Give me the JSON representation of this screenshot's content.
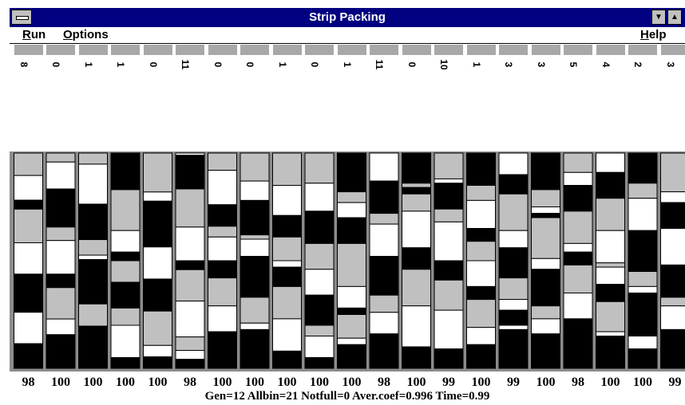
{
  "window": {
    "title": "Strip Packing",
    "system_menu_icon": "system-menu-icon",
    "minimize_icon": "minimize-arrow-icon",
    "maximize_icon": "maximize-arrow-icon"
  },
  "menu": {
    "run": "Run",
    "options": "Options",
    "help": "Help"
  },
  "bins": [
    {
      "count": "8",
      "coef": "98",
      "segments": [
        "L",
        10,
        "W",
        11,
        "B",
        4,
        "L",
        15,
        "W",
        14,
        "B",
        17,
        "W",
        14,
        "B",
        11
      ]
    },
    {
      "count": "0",
      "coef": "100",
      "segments": [
        "L",
        4,
        "W",
        12,
        "B",
        17,
        "L",
        6,
        "W",
        15,
        "B",
        6,
        "L",
        14,
        "W",
        7,
        "B",
        15
      ]
    },
    {
      "count": "1",
      "coef": "100",
      "segments": [
        "L",
        5,
        "W",
        18,
        "B",
        16,
        "L",
        7,
        "W",
        2,
        "B",
        20,
        "L",
        10,
        "B",
        19
      ]
    },
    {
      "count": "1",
      "coef": "100",
      "segments": [
        "B",
        17,
        "L",
        19,
        "W",
        10,
        "B",
        4,
        "L",
        10,
        "B",
        12,
        "L",
        8,
        "W",
        15,
        "B",
        5
      ]
    },
    {
      "count": "0",
      "coef": "100",
      "segments": [
        "L",
        17,
        "W",
        4,
        "B",
        20,
        "W",
        14,
        "B",
        14,
        "L",
        15,
        "W",
        5,
        "B",
        5
      ]
    },
    {
      "count": "11",
      "coef": "98",
      "segments": [
        "W",
        1,
        "B",
        15,
        "L",
        17,
        "W",
        15,
        "B",
        4,
        "L",
        14,
        "W",
        16,
        "L",
        6,
        "W",
        4,
        "B",
        4
      ]
    },
    {
      "count": "0",
      "coef": "100",
      "segments": [
        "L",
        8,
        "W",
        16,
        "B",
        10,
        "L",
        5,
        "W",
        11,
        "B",
        8,
        "L",
        13,
        "W",
        12,
        "B",
        17
      ]
    },
    {
      "count": "0",
      "coef": "100",
      "segments": [
        "L",
        13,
        "W",
        9,
        "B",
        16,
        "L",
        2,
        "W",
        8,
        "B",
        19,
        "L",
        12,
        "W",
        3,
        "B",
        18
      ]
    },
    {
      "count": "1",
      "coef": "100",
      "segments": [
        "L",
        15,
        "W",
        14,
        "B",
        10,
        "L",
        11,
        "W",
        3,
        "B",
        9,
        "L",
        15,
        "W",
        15,
        "B",
        8
      ]
    },
    {
      "count": "0",
      "coef": "100",
      "segments": [
        "L",
        14,
        "W",
        13,
        "B",
        15,
        "L",
        12,
        "W",
        12,
        "B",
        14,
        "L",
        5,
        "W",
        10,
        "B",
        5
      ]
    },
    {
      "count": "1",
      "coef": "100",
      "segments": [
        "B",
        18,
        "L",
        5,
        "W",
        7,
        "B",
        12,
        "L",
        20,
        "W",
        10,
        "B",
        3,
        "L",
        11,
        "W",
        3,
        "B",
        11
      ]
    },
    {
      "count": "11",
      "coef": "98",
      "segments": [
        "W",
        13,
        "B",
        15,
        "L",
        5,
        "W",
        15,
        "B",
        18,
        "L",
        8,
        "W",
        10,
        "B",
        16
      ]
    },
    {
      "count": "0",
      "coef": "100",
      "segments": [
        "B",
        14,
        "L",
        2,
        "B",
        3,
        "L",
        8,
        "W",
        17,
        "B",
        10,
        "L",
        17,
        "W",
        19,
        "B",
        10
      ]
    },
    {
      "count": "10",
      "coef": "99",
      "segments": [
        "L",
        12,
        "W",
        2,
        "B",
        12,
        "L",
        6,
        "W",
        18,
        "B",
        9,
        "L",
        14,
        "W",
        18,
        "B",
        9
      ]
    },
    {
      "count": "1",
      "coef": "100",
      "segments": [
        "B",
        15,
        "L",
        7,
        "W",
        13,
        "B",
        6,
        "L",
        9,
        "W",
        12,
        "B",
        6,
        "L",
        13,
        "W",
        8,
        "B",
        11
      ]
    },
    {
      "count": "3",
      "coef": "99",
      "segments": [
        "W",
        10,
        "B",
        9,
        "L",
        17,
        "W",
        8,
        "B",
        14,
        "L",
        10,
        "W",
        5,
        "B",
        7,
        "W",
        2,
        "B",
        18
      ]
    },
    {
      "count": "3",
      "coef": "100",
      "segments": [
        "B",
        17,
        "L",
        8,
        "W",
        3,
        "B",
        2,
        "L",
        19,
        "W",
        5,
        "B",
        17,
        "L",
        6,
        "W",
        7,
        "B",
        16
      ]
    },
    {
      "count": "5",
      "coef": "98",
      "segments": [
        "L",
        9,
        "W",
        6,
        "B",
        12,
        "L",
        15,
        "W",
        4,
        "B",
        6,
        "L",
        13,
        "W",
        12,
        "B",
        23
      ]
    },
    {
      "count": "4",
      "coef": "100",
      "segments": [
        "W",
        9,
        "B",
        12,
        "L",
        15,
        "W",
        15,
        "L",
        2,
        "W",
        8,
        "B",
        8,
        "L",
        14,
        "W",
        2,
        "B",
        15
      ]
    },
    {
      "count": "2",
      "coef": "100",
      "segments": [
        "B",
        14,
        "L",
        7,
        "W",
        15,
        "B",
        19,
        "L",
        7,
        "W",
        3,
        "B",
        20,
        "W",
        6,
        "B",
        9
      ]
    },
    {
      "count": "3",
      "coef": "99",
      "segments": [
        "L",
        18,
        "W",
        5,
        "B",
        12,
        "W",
        17,
        "B",
        15,
        "L",
        4,
        "W",
        11,
        "B",
        18
      ]
    }
  ],
  "status": "Gen=12 Allbin=21 Notfull=0 Aver.coef=0.996 Time=0.99",
  "colors": {
    "title_bar": "#000080",
    "block_black": "#000000",
    "block_gray": "#c0c0c0",
    "block_white": "#ffffff",
    "bin_header": "#a8a8a8",
    "strip_background": "#8c8c8c"
  }
}
